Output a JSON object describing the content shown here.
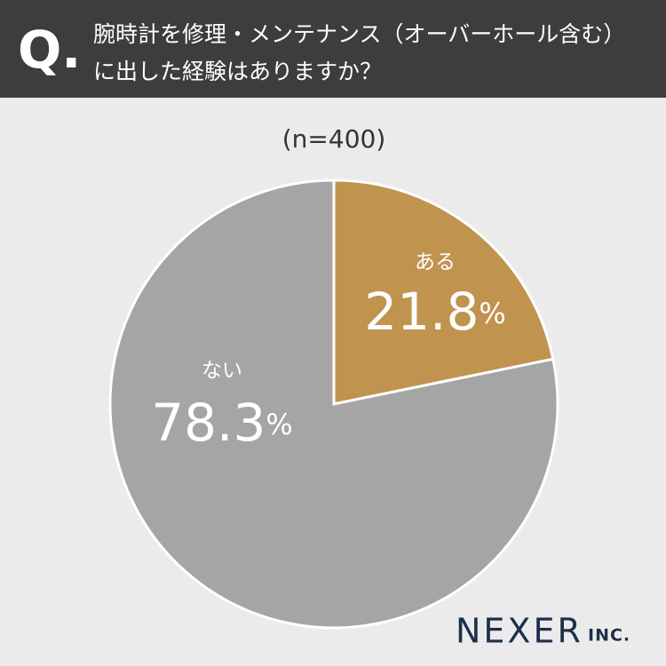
{
  "chart_data": {
    "type": "pie",
    "badge": "Q.",
    "title": [
      "腕時計を修理・メンテナンス（オーバーホール含む）",
      "に出した経験はありますか？"
    ],
    "subtitle": "(n=400)",
    "categories": [
      "ある",
      "ない"
    ],
    "values": [
      21.8,
      78.3
    ],
    "value_labels": [
      "21.8%",
      "78.3%"
    ],
    "colors": [
      "#c0934f",
      "#a5a5a5"
    ],
    "brand": "NEXER",
    "brand_suffix": "INC."
  }
}
